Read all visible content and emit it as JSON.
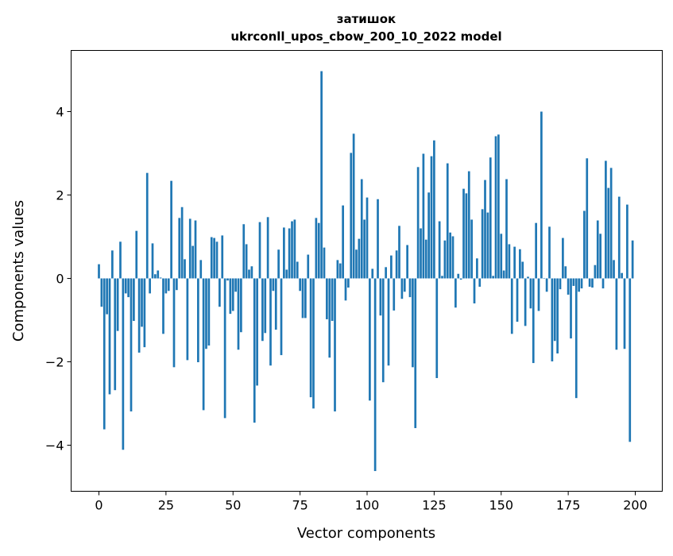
{
  "chart_data": {
    "type": "bar",
    "title_line1": "затишок",
    "title_line2": "ukrconll_upos_cbow_200_10_2022 model",
    "xlabel": "Vector components",
    "ylabel": "Components values",
    "xlim": [
      -10.37,
      210.07
    ],
    "ylim": [
      -5.105,
      5.467
    ],
    "xticks": [
      0,
      25,
      50,
      75,
      100,
      125,
      150,
      175,
      200
    ],
    "yticks": [
      -4,
      -2,
      0,
      2,
      4
    ],
    "ytick_labels": [
      "−4",
      "−2",
      "0",
      "2",
      "4"
    ],
    "grid": false,
    "bar_color": "#1f77b4",
    "values": [
      0.34,
      -0.68,
      -3.62,
      -0.86,
      -2.78,
      0.67,
      -2.68,
      -1.26,
      0.88,
      -4.11,
      -0.36,
      -0.45,
      -3.19,
      -1.02,
      1.14,
      -1.78,
      -1.16,
      -1.65,
      2.53,
      -0.36,
      0.84,
      0.1,
      0.19,
      0.02,
      -1.33,
      -0.36,
      -0.3,
      2.34,
      -2.13,
      -0.28,
      1.45,
      1.71,
      0.46,
      -1.96,
      1.43,
      0.78,
      1.39,
      -2.01,
      0.44,
      -3.16,
      -1.69,
      -1.61,
      0.99,
      0.97,
      0.88,
      -0.68,
      1.03,
      -3.35,
      -0.05,
      -0.85,
      -0.78,
      -0.32,
      -1.71,
      -1.29,
      1.3,
      0.82,
      0.21,
      0.29,
      -3.46,
      -2.57,
      1.35,
      -1.5,
      -1.31,
      1.47,
      -2.09,
      -0.3,
      -1.23,
      0.69,
      -1.84,
      1.22,
      0.21,
      1.2,
      1.37,
      1.41,
      0.4,
      -0.3,
      -0.95,
      -0.95,
      0.57,
      -2.85,
      -3.12,
      1.45,
      1.33,
      4.97,
      0.74,
      -0.98,
      -1.9,
      -1.02,
      -3.19,
      0.44,
      0.36,
      1.75,
      -0.53,
      -0.22,
      3.01,
      3.47,
      0.69,
      0.95,
      2.38,
      1.41,
      1.94,
      -2.93,
      0.23,
      -4.62,
      1.9,
      -0.89,
      -2.49,
      0.27,
      -2.09,
      0.55,
      -0.77,
      0.67,
      1.26,
      -0.49,
      -0.32,
      0.8,
      -0.45,
      -2.13,
      -3.59,
      2.67,
      1.2,
      2.99,
      0.93,
      2.06,
      2.93,
      3.31,
      -2.39,
      1.37,
      0.06,
      0.91,
      2.76,
      1.1,
      1.01,
      -0.7,
      0.11,
      -0.03,
      2.15,
      2.04,
      2.57,
      1.41,
      -0.6,
      0.48,
      -0.2,
      1.66,
      2.36,
      1.58,
      2.9,
      0.06,
      3.41,
      3.45,
      1.07,
      0.19,
      2.38,
      0.82,
      -1.33,
      0.76,
      -1.04,
      0.7,
      0.4,
      -1.14,
      0.04,
      -0.72,
      -2.03,
      1.33,
      -0.78,
      4.0,
      0.01,
      -0.32,
      1.24,
      -1.99,
      -1.5,
      -1.8,
      -0.26,
      0.97,
      0.29,
      -0.39,
      -1.44,
      -0.18,
      -2.87,
      -0.32,
      -0.24,
      1.62,
      2.88,
      -0.2,
      -0.22,
      0.32,
      1.39,
      1.07,
      -0.24,
      2.82,
      2.17,
      2.65,
      0.44,
      -1.71,
      1.96,
      0.13,
      -1.69,
      1.77,
      -3.92,
      0.91
    ]
  }
}
